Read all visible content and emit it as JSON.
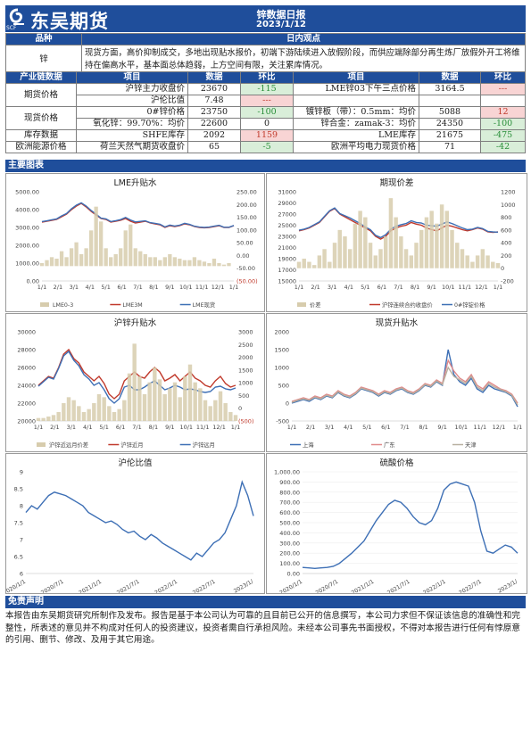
{
  "header": {
    "logo_text": "东吴期货",
    "logo_sub": "SCF",
    "title": "锌数据日报",
    "date": "2023/1/12"
  },
  "view": {
    "col_variety": "品种",
    "col_view": "日内观点",
    "variety": "锌",
    "text": "现货方面，高价抑制成交，多地出现贴水报价，初端下游陆续进入放假阶段，而供应端除部分再生炼厂放假外开工将维持在偏高水平，基本面总体趋弱，上方空间有限，关注累库情况。"
  },
  "table": {
    "headers": [
      "产业链数据",
      "项目",
      "数据",
      "环比",
      "项目",
      "数据",
      "环比"
    ],
    "rows": [
      {
        "cat": "期货价格",
        "l_item": "沪锌主力收盘价",
        "l_val": "23670",
        "l_chg": "-115",
        "l_cls": "lg",
        "r_item": "LME锌03下午三点价格",
        "r_val": "3164.5",
        "r_chg": "---",
        "r_cls": "lr"
      },
      {
        "cat": "",
        "l_item": "沪伦比值",
        "l_val": "7.48",
        "l_chg": "---",
        "l_cls": "lr",
        "r_item": "",
        "r_val": "",
        "r_chg": "",
        "r_cls": ""
      },
      {
        "cat": "现货价格",
        "l_item": "0#锌价格",
        "l_val": "23750",
        "l_chg": "-100",
        "l_cls": "lg",
        "r_item": "镀锌板（带）：0.5mm：均价",
        "r_val": "5088",
        "r_chg": "12",
        "r_cls": "lr"
      },
      {
        "cat": "",
        "l_item": "氧化锌：99.70%：均价",
        "l_val": "22600",
        "l_chg": "0",
        "l_cls": "",
        "r_item": "锌合金：zamak-3：均价",
        "r_val": "24350",
        "r_chg": "-100",
        "r_cls": "lg"
      },
      {
        "cat": "库存数据",
        "l_item": "SHFE库存",
        "l_val": "2092",
        "l_chg": "1159",
        "l_cls": "lr",
        "r_item": "LME库存",
        "r_val": "21675",
        "r_chg": "-475",
        "r_cls": "lg"
      },
      {
        "cat": "欧洲能源价格",
        "l_item": "荷兰天然气期货收盘价",
        "l_val": "65",
        "l_chg": "-5",
        "l_cls": "lg",
        "r_item": "欧洲平均电力现货价格",
        "r_val": "71",
        "r_chg": "-42",
        "r_cls": "lg"
      }
    ]
  },
  "charts_section_label": "主要图表",
  "disclaimer": {
    "label": "免责声明",
    "text": "本报告由东吴期货研究所制作及发布。报告是基于本公司认为可靠的且目前已公开的信息撰写，本公司力求但不保证该信息的准确性和完整性，所表述的意见并不构成对任何人的投资建议，投资者需自行承担风险。未经本公司事先书面授权，不得对本报告进行任何有悖原意的引用、删节、修改、及用于其它用途。"
  },
  "colors": {
    "brand": "#1f4e9b",
    "red": "#c0392b",
    "blue": "#3d6fb5",
    "bar": "#d7ccad",
    "green": "#2a8f3a"
  },
  "chart_data": [
    {
      "type": "line",
      "title": "LME升贴水",
      "x_ticks": [
        "1/1",
        "2/1",
        "3/1",
        "4/1",
        "5/1",
        "6/1",
        "7/1",
        "8/1",
        "9/1",
        "10/1",
        "11/1",
        "12/1",
        "1/1"
      ],
      "y_left_ticks": [
        "5000.00",
        "4000.00",
        "3000.00",
        "2000.00",
        "1000.00",
        "0.00"
      ],
      "y_right_ticks": [
        "250.00",
        "200.00",
        "150.00",
        "100.00",
        "50.00",
        "0.00",
        "-50.00",
        "(50.00)"
      ],
      "legend": [
        "LME0-3",
        "LME3M",
        "LME现货"
      ],
      "series": [
        {
          "name": "LME3M",
          "values": [
            3300,
            3350,
            3400,
            3450,
            3600,
            3750,
            4000,
            4200,
            4350,
            4150,
            3900,
            3700,
            3500,
            3450,
            3300,
            3350,
            3400,
            3500,
            3350,
            3250,
            3300,
            3350,
            3250,
            3200,
            3150,
            3000,
            3100,
            3050,
            3100,
            3200,
            3150,
            3050,
            3000,
            2980,
            3000,
            3050,
            3100,
            3000,
            3000,
            3100
          ]
        },
        {
          "name": "LME现货",
          "values": [
            3330,
            3370,
            3430,
            3480,
            3650,
            3780,
            4050,
            4250,
            4380,
            4200,
            3950,
            3750,
            3520,
            3480,
            3330,
            3380,
            3440,
            3560,
            3420,
            3310,
            3340,
            3370,
            3270,
            3230,
            3180,
            3030,
            3130,
            3080,
            3130,
            3230,
            3170,
            3070,
            3020,
            3000,
            3020,
            3070,
            3120,
            3010,
            3010,
            3110
          ]
        },
        {
          "name": "LME0-3",
          "values": [
            10,
            20,
            30,
            25,
            50,
            30,
            60,
            80,
            40,
            60,
            120,
            200,
            150,
            60,
            30,
            40,
            60,
            120,
            140,
            60,
            50,
            40,
            30,
            30,
            20,
            30,
            40,
            30,
            25,
            20,
            20,
            30,
            20,
            15,
            10,
            25,
            10,
            5,
            10,
            0
          ]
        }
      ]
    },
    {
      "type": "line",
      "title": "期现价差",
      "x_ticks": [
        "1/1",
        "2/1",
        "3/1",
        "4/1",
        "5/1",
        "6/1",
        "7/1",
        "8/1",
        "9/1",
        "10/1",
        "11/1",
        "12/1",
        "1/1"
      ],
      "y_left_ticks": [
        "31000",
        "29000",
        "27000",
        "25000",
        "23000",
        "21000",
        "19000",
        "17000",
        "15000"
      ],
      "y_right_ticks": [
        "1200",
        "1000",
        "800",
        "600",
        "400",
        "200",
        "0",
        "-200"
      ],
      "legend": [
        "价差",
        "沪锌连续合约收盘价",
        "0#锌锭价格"
      ],
      "series": [
        {
          "name": "沪锌连续合约收盘价",
          "values": [
            24000,
            24200,
            24500,
            25000,
            25500,
            26500,
            27500,
            28000,
            27000,
            26500,
            26000,
            25500,
            25000,
            24500,
            24000,
            23000,
            22500,
            23000,
            24000,
            24500,
            24800,
            25000,
            25500,
            25200,
            25000,
            24500,
            24200,
            24000,
            24500,
            25000,
            24800,
            24500,
            24200,
            24000,
            24200,
            24500,
            24300,
            23800,
            23700,
            23800
          ]
        },
        {
          "name": "0#锌锭价格",
          "values": [
            24100,
            24300,
            24600,
            25100,
            25600,
            26600,
            27600,
            28100,
            27100,
            26700,
            26300,
            25800,
            25300,
            24700,
            24200,
            23200,
            22800,
            23300,
            24300,
            24800,
            25100,
            25300,
            25800,
            25500,
            25400,
            25000,
            24900,
            24800,
            25200,
            25600,
            25300,
            24900,
            24500,
            24200,
            24300,
            24600,
            24400,
            23900,
            23800,
            23750
          ]
        },
        {
          "name": "价差",
          "values": [
            100,
            150,
            100,
            50,
            200,
            300,
            100,
            400,
            600,
            500,
            300,
            700,
            900,
            800,
            400,
            200,
            300,
            500,
            1100,
            800,
            500,
            300,
            200,
            400,
            600,
            800,
            900,
            700,
            1000,
            900,
            600,
            400,
            300,
            200,
            100,
            200,
            300,
            200,
            100,
            80
          ]
        }
      ]
    },
    {
      "type": "line",
      "title": "沪锌升贴水",
      "x_ticks": [
        "1/1",
        "2/1",
        "3/1",
        "4/1",
        "5/1",
        "6/1",
        "7/1",
        "8/1",
        "9/1",
        "10/1",
        "11/1",
        "12/1",
        "1/1"
      ],
      "y_left_ticks": [
        "30000",
        "28000",
        "26000",
        "24000",
        "22000",
        "20000"
      ],
      "y_right_ticks": [
        "3000",
        "2500",
        "2000",
        "1500",
        "1000",
        "500",
        "0",
        "(500)"
      ],
      "legend": [
        "沪锌近远月价差",
        "沪锌近月",
        "沪锌远月"
      ],
      "series": [
        {
          "name": "沪锌近月",
          "values": [
            24000,
            24500,
            25000,
            24800,
            26000,
            27500,
            28000,
            27000,
            26500,
            25500,
            25000,
            24500,
            25000,
            24200,
            23000,
            22500,
            23000,
            24500,
            25000,
            25500,
            25000,
            24800,
            25500,
            26000,
            25500,
            24500,
            24800,
            25200,
            24500,
            25000,
            25500,
            24800,
            24500,
            24000,
            23800,
            24500,
            25000,
            24200,
            23800,
            24000
          ]
        },
        {
          "name": "沪锌远月",
          "values": [
            23900,
            24400,
            24900,
            24700,
            25900,
            27300,
            27800,
            26800,
            26200,
            25200,
            24700,
            24000,
            24300,
            23500,
            22500,
            22000,
            22500,
            23800,
            24000,
            23500,
            23500,
            23800,
            24200,
            24500,
            24000,
            23500,
            23700,
            24000,
            23800,
            23500,
            23600,
            23500,
            23300,
            23200,
            23300,
            23800,
            23900,
            23600,
            23500,
            23700
          ]
        },
        {
          "name": "沪锌近远月价差",
          "values": [
            100,
            100,
            150,
            200,
            300,
            600,
            800,
            700,
            500,
            300,
            400,
            600,
            900,
            800,
            500,
            300,
            400,
            700,
            1600,
            2600,
            1500,
            900,
            1300,
            1800,
            1400,
            900,
            1100,
            1300,
            800,
            1500,
            1900,
            1300,
            1100,
            700,
            500,
            700,
            1000,
            600,
            300,
            200
          ]
        }
      ]
    },
    {
      "type": "line",
      "title": "现货升贴水",
      "x_ticks": [
        "1/1",
        "2/1",
        "3/1",
        "4/1",
        "5/1",
        "6/1",
        "7/1",
        "8/1",
        "9/1",
        "10/1",
        "11/1",
        "12/1",
        "1/1"
      ],
      "y_left_ticks": [
        "2000",
        "1500",
        "1000",
        "500",
        "0",
        "-500"
      ],
      "legend": [
        "上海",
        "广东",
        "天津"
      ],
      "series": [
        {
          "name": "上海",
          "values": [
            0,
            50,
            100,
            50,
            150,
            100,
            200,
            150,
            300,
            200,
            150,
            250,
            400,
            350,
            300,
            200,
            300,
            250,
            350,
            400,
            300,
            250,
            350,
            500,
            450,
            600,
            500,
            1500,
            800,
            600,
            500,
            700,
            400,
            300,
            500,
            400,
            350,
            300,
            200,
            -100
          ]
        },
        {
          "name": "广东",
          "values": [
            50,
            100,
            150,
            100,
            200,
            150,
            250,
            200,
            350,
            250,
            200,
            300,
            450,
            400,
            350,
            250,
            350,
            300,
            400,
            450,
            350,
            300,
            400,
            550,
            500,
            650,
            550,
            1200,
            900,
            700,
            600,
            800,
            500,
            400,
            600,
            500,
            400,
            350,
            250,
            0
          ]
        },
        {
          "name": "天津",
          "values": [
            20,
            80,
            120,
            80,
            170,
            120,
            220,
            170,
            320,
            220,
            170,
            270,
            420,
            370,
            320,
            220,
            320,
            270,
            370,
            420,
            320,
            270,
            370,
            520,
            470,
            620,
            520,
            1000,
            750,
            650,
            550,
            750,
            450,
            350,
            550,
            450,
            380,
            320,
            220,
            -50
          ]
        }
      ]
    },
    {
      "type": "line",
      "title": "沪伦比值",
      "x_ticks": [
        "2020/1/1",
        "2020/7/1",
        "2021/1/1",
        "2021/7/1",
        "2022/1/1",
        "2022/7/1",
        "2023/1/"
      ],
      "y_left_ticks": [
        "9",
        "8.5",
        "8",
        "7.5",
        "7",
        "6.5",
        "6"
      ],
      "series": [
        {
          "name": "沪伦比值",
          "values": [
            7.8,
            8.0,
            7.9,
            8.1,
            8.3,
            8.4,
            8.35,
            8.3,
            8.2,
            8.1,
            8.0,
            7.8,
            7.7,
            7.6,
            7.5,
            7.55,
            7.45,
            7.3,
            7.2,
            7.25,
            7.1,
            7.0,
            7.15,
            7.05,
            6.9,
            6.8,
            6.7,
            6.6,
            6.5,
            6.4,
            6.6,
            6.5,
            6.7,
            6.9,
            7.0,
            7.2,
            7.6,
            8.0,
            8.7,
            8.3,
            7.7
          ]
        }
      ]
    },
    {
      "type": "line",
      "title": "硫酸价格",
      "x_ticks": [
        "2020/1/1",
        "2020/7/1",
        "2021/1/1",
        "2021/7/1",
        "2022/1/1",
        "2022/7/1",
        "2023/1/"
      ],
      "y_left_ticks": [
        "1,000.00",
        "900.00",
        "800.00",
        "700.00",
        "600.00",
        "500.00",
        "400.00",
        "300.00",
        "200.00",
        "100.00",
        "0.00"
      ],
      "series": [
        {
          "name": "硫酸价格",
          "values": [
            60,
            55,
            50,
            55,
            60,
            70,
            100,
            150,
            200,
            260,
            320,
            420,
            520,
            600,
            680,
            720,
            700,
            640,
            560,
            500,
            480,
            520,
            640,
            820,
            880,
            900,
            880,
            860,
            700,
            420,
            220,
            200,
            240,
            280,
            260,
            200
          ]
        }
      ]
    }
  ]
}
